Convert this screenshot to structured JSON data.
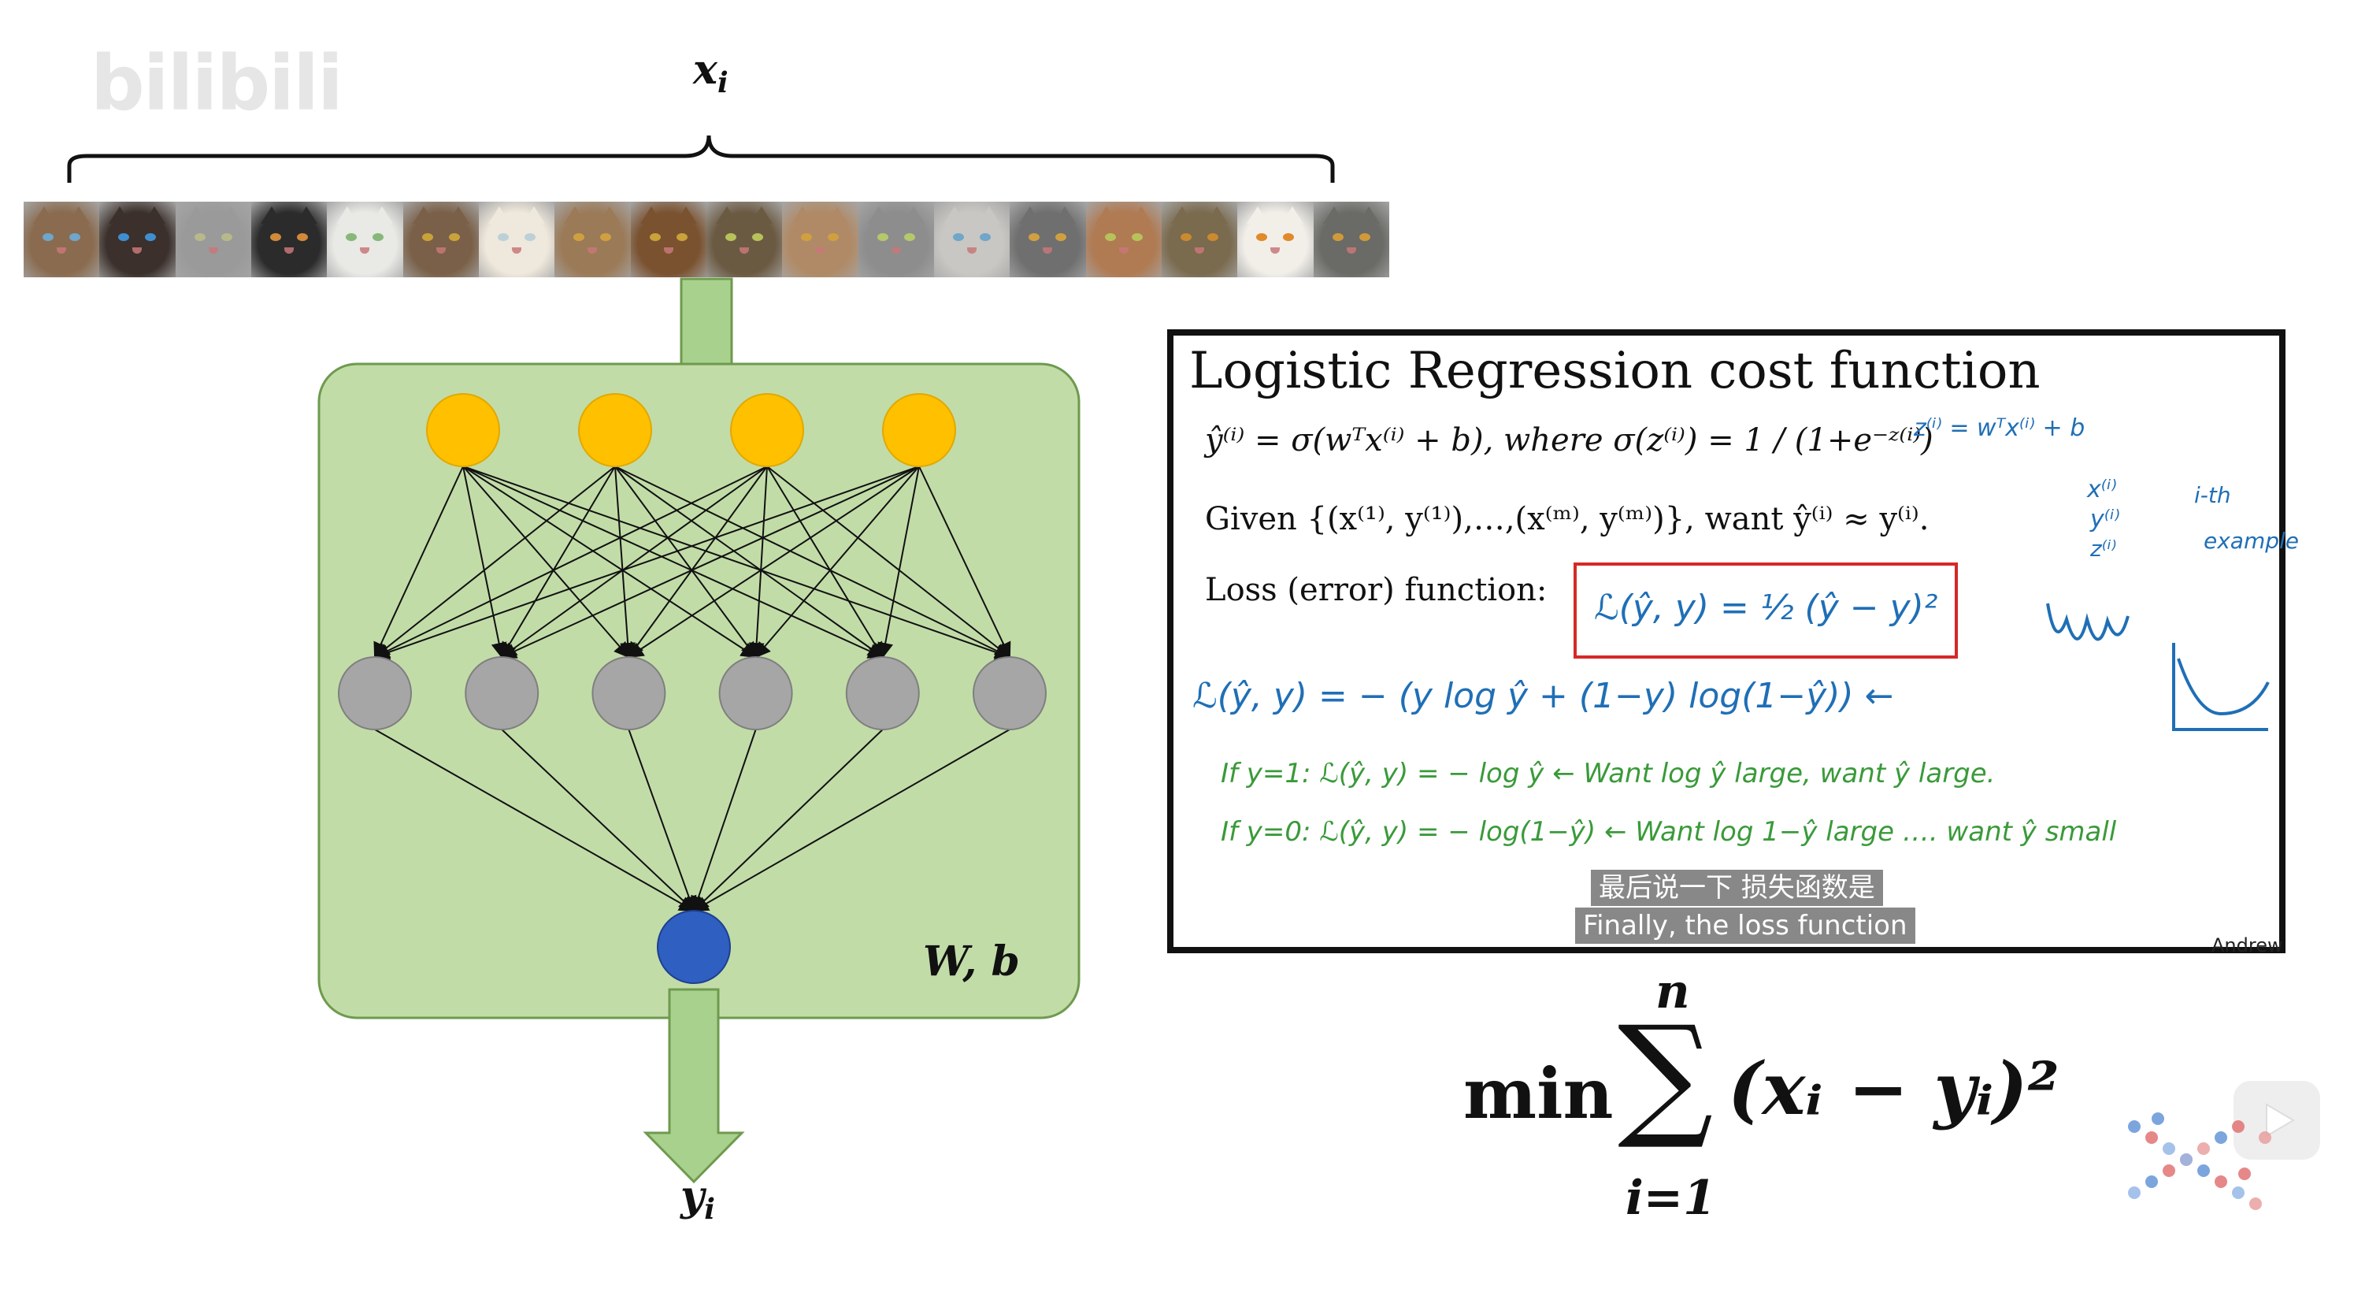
{
  "watermark": {
    "text": "bilibili"
  },
  "diagram": {
    "input_label": "x",
    "input_sub": "i",
    "weights_label": "W, b",
    "output_label": "y",
    "output_sub": "i",
    "cat_image_count": 18,
    "layers": {
      "input": 4,
      "hidden": 6,
      "output": 1
    },
    "colors": {
      "panel_fill": "#c2dca8",
      "panel_border": "#6e9a4e",
      "arrow_fill": "#a9d18e",
      "arrow_border": "#6e9a4e",
      "input_node": "#ffc000",
      "hidden_node": "#a6a6a6",
      "output_node": "#2e5fc1"
    }
  },
  "slide": {
    "title": "Logistic Regression cost function",
    "line1": "ŷ⁽ⁱ⁾ = σ(wᵀx⁽ⁱ⁾ + b), where σ(z⁽ⁱ⁾) = 1 / (1+e⁻ᶻ⁽ⁱ⁾)",
    "line2": "Given {(x⁽¹⁾, y⁽¹⁾),…,(x⁽ᵐ⁾, y⁽ᵐ⁾)}, want ŷ⁽ⁱ⁾ ≈ y⁽ⁱ⁾.",
    "line3_label": "Loss (error) function:",
    "loss_box": "ℒ(ŷ, y) = ½ (ŷ − y)²",
    "note_z": "z⁽ⁱ⁾ = wᵀx⁽ⁱ⁾ + b",
    "note_x": "x⁽ⁱ⁾",
    "note_y": "y⁽ⁱ⁾",
    "note_zi": "z⁽ⁱ⁾",
    "note_ith": "i-th",
    "note_example": "example",
    "hand_loss": "ℒ(ŷ, y) = − (y log ŷ + (1−y) log(1−ŷ)) ←",
    "hand_if1": "If  y=1:  ℒ(ŷ, y) = − log ŷ   ←  Want log ŷ large, want ŷ large.",
    "hand_if0": "If  y=0:  ℒ(ŷ, y) = − log(1−ŷ)  ← Want log 1−ŷ large …. want ŷ small",
    "subtitle_zh": "最后说一下 损失函数是",
    "subtitle_en": "Finally, the loss function",
    "author": "Andrew"
  },
  "formula": {
    "min": "min",
    "sigma": "∑",
    "upper": "n",
    "lower": "i=1",
    "body": "(xᵢ − yᵢ)²"
  }
}
